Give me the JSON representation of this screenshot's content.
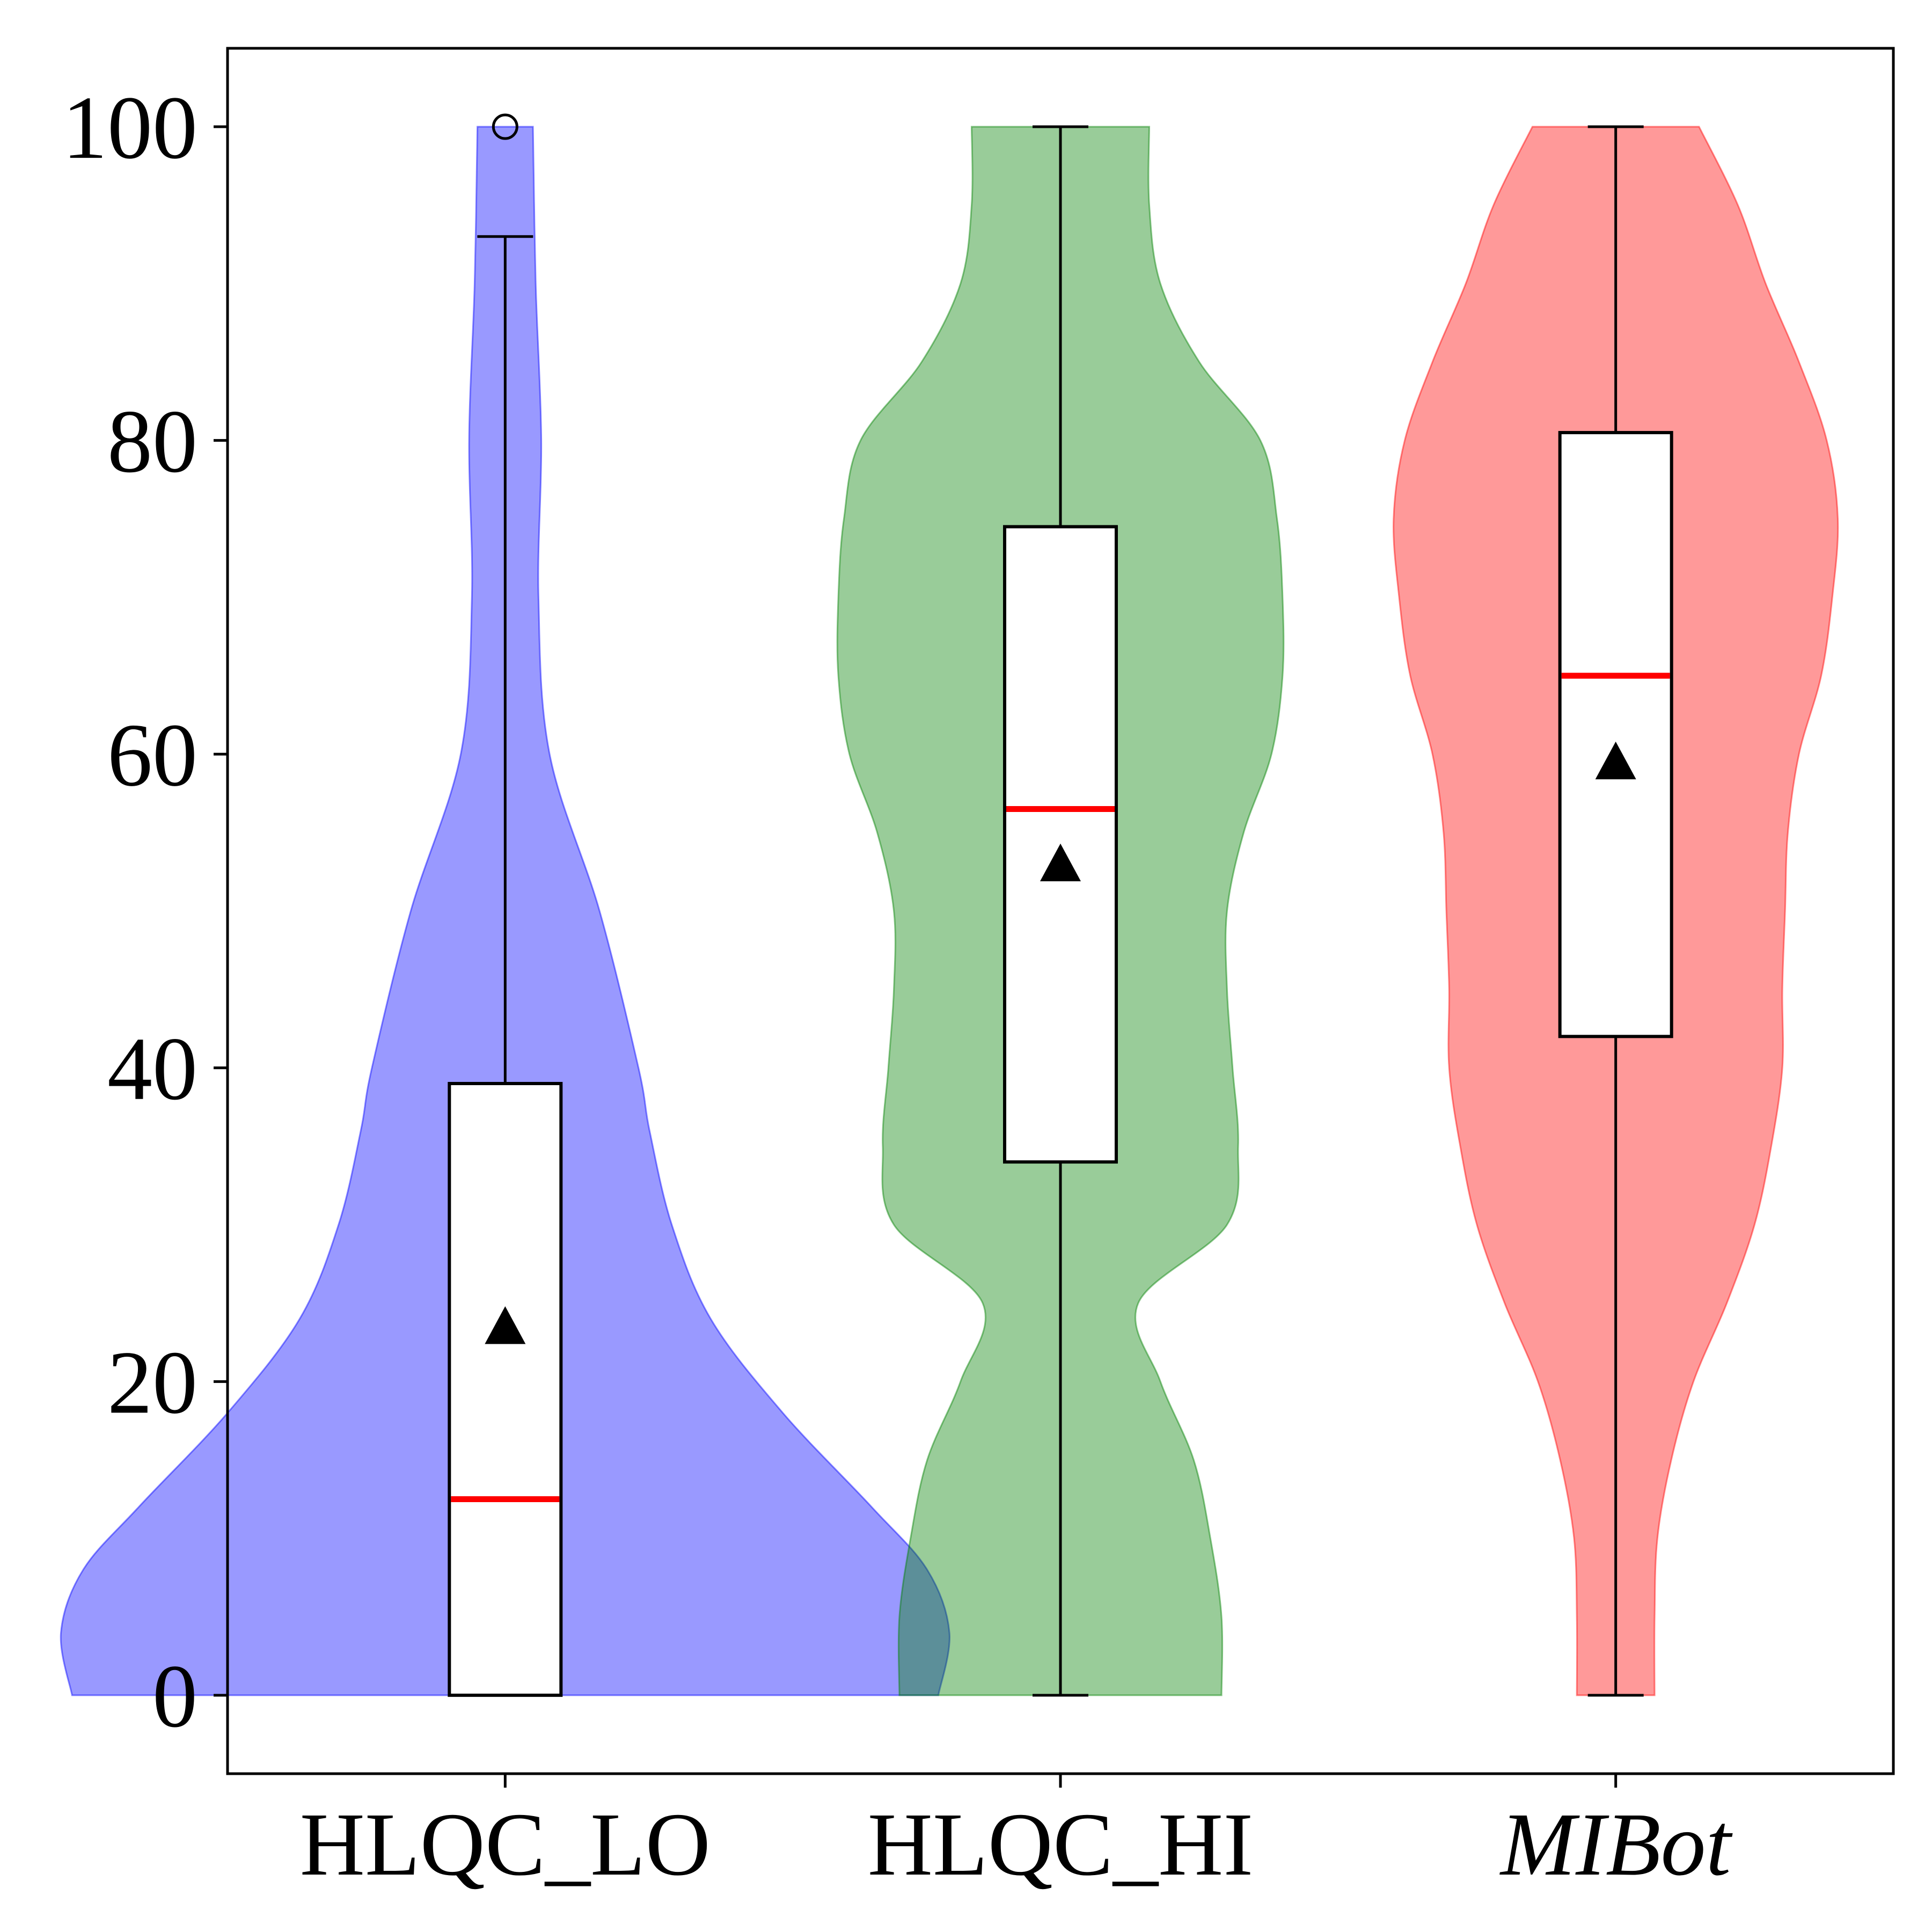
{
  "chart_data": {
    "type": "violin",
    "title": "",
    "xlabel": "",
    "ylabel": "",
    "ylim": [
      -5,
      105
    ],
    "yticks": [
      0,
      20,
      40,
      60,
      80,
      100
    ],
    "ytick_labels": [
      "0",
      "20",
      "40",
      "60",
      "80",
      "100"
    ],
    "grid": false,
    "legend": "none",
    "series": [
      {
        "category": "HLQC_LO",
        "italic": false,
        "color": "#0000ff",
        "q1": 0,
        "median": 12.5,
        "q3": 39,
        "mean": 23.5,
        "whisker_low": 0,
        "whisker_high": 93,
        "outliers": [
          100
        ],
        "density": [
          [
            0,
            0.78
          ],
          [
            4,
            0.8
          ],
          [
            8,
            0.76
          ],
          [
            12,
            0.66
          ],
          [
            18,
            0.5
          ],
          [
            24,
            0.37
          ],
          [
            30,
            0.3
          ],
          [
            36,
            0.26
          ],
          [
            40,
            0.24
          ],
          [
            50,
            0.17
          ],
          [
            60,
            0.08
          ],
          [
            70,
            0.06
          ],
          [
            80,
            0.065
          ],
          [
            90,
            0.055
          ],
          [
            100,
            0.05
          ]
        ]
      },
      {
        "category": "HLQC_HI",
        "italic": false,
        "color": "#008000",
        "q1": 34,
        "median": 56.5,
        "q3": 74.5,
        "mean": 53,
        "whisker_low": 0,
        "whisker_high": 100,
        "outliers": [],
        "density": [
          [
            0,
            0.29
          ],
          [
            5,
            0.29
          ],
          [
            10,
            0.27
          ],
          [
            15,
            0.24
          ],
          [
            20,
            0.18
          ],
          [
            25,
            0.14
          ],
          [
            30,
            0.3
          ],
          [
            35,
            0.32
          ],
          [
            40,
            0.31
          ],
          [
            45,
            0.3
          ],
          [
            50,
            0.3
          ],
          [
            55,
            0.33
          ],
          [
            60,
            0.38
          ],
          [
            65,
            0.4
          ],
          [
            70,
            0.4
          ],
          [
            75,
            0.39
          ],
          [
            80,
            0.36
          ],
          [
            85,
            0.25
          ],
          [
            90,
            0.18
          ],
          [
            95,
            0.16
          ],
          [
            100,
            0.16
          ]
        ]
      },
      {
        "category": "MIBot",
        "italic": true,
        "color": "#ff0000",
        "q1": 42,
        "median": 65,
        "q3": 80.5,
        "mean": 59.5,
        "whisker_low": 0,
        "whisker_high": 100,
        "outliers": [],
        "density": [
          [
            0,
            0.07
          ],
          [
            5,
            0.07
          ],
          [
            10,
            0.075
          ],
          [
            15,
            0.1
          ],
          [
            20,
            0.14
          ],
          [
            25,
            0.2
          ],
          [
            30,
            0.25
          ],
          [
            35,
            0.28
          ],
          [
            40,
            0.3
          ],
          [
            45,
            0.3
          ],
          [
            50,
            0.305
          ],
          [
            55,
            0.31
          ],
          [
            60,
            0.33
          ],
          [
            65,
            0.37
          ],
          [
            70,
            0.39
          ],
          [
            75,
            0.4
          ],
          [
            80,
            0.38
          ],
          [
            85,
            0.33
          ],
          [
            90,
            0.27
          ],
          [
            95,
            0.22
          ],
          [
            100,
            0.15
          ]
        ]
      }
    ]
  }
}
